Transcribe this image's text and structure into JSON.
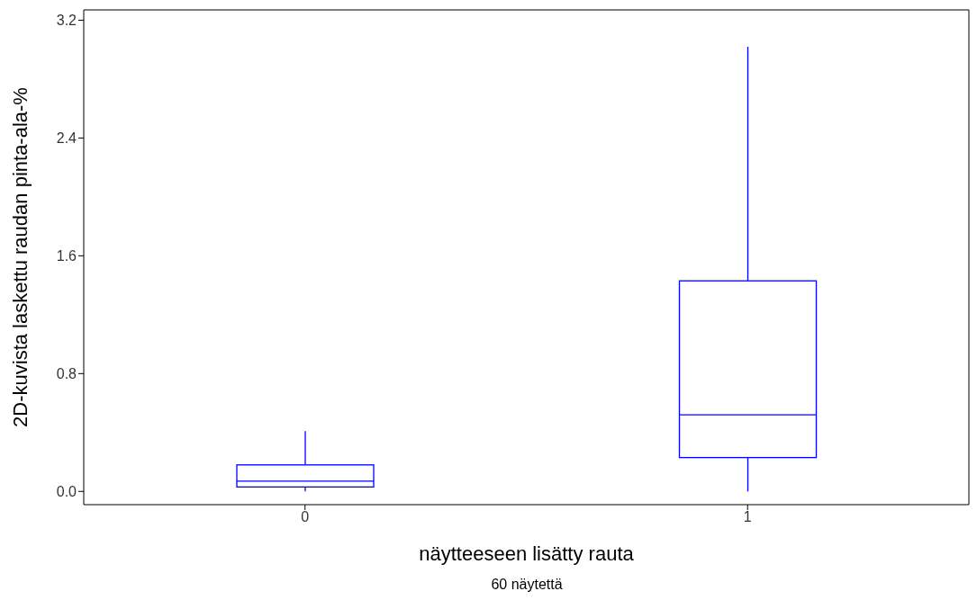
{
  "chart_data": {
    "type": "box",
    "xlabel": "näytteeseen lisätty rauta",
    "ylabel": "2D-kuvista laskettu raudan pinta-ala-%",
    "annotations": [
      "60 näytettä"
    ],
    "categories": [
      "0",
      "1"
    ],
    "color": "#0000ff",
    "boxes": [
      {
        "low": 0.0,
        "q1": 0.03,
        "median": 0.07,
        "q3": 0.18,
        "high": 0.41
      },
      {
        "low": 0.0,
        "q1": 0.23,
        "median": 0.52,
        "q3": 1.43,
        "high": 3.02
      }
    ],
    "ylim": [
      -0.09,
      3.27
    ],
    "yticks": [
      {
        "value": 0,
        "label": "0.0"
      },
      0.8,
      1.6,
      2.4,
      3.2
    ]
  }
}
